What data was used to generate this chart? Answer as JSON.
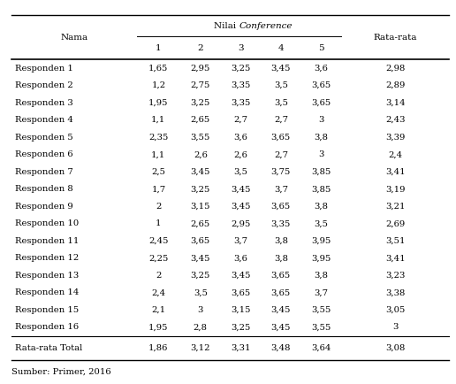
{
  "col_header_main": "Nama",
  "col_header_rata": "Rata-rata",
  "sub_headers": [
    "1",
    "2",
    "3",
    "4",
    "5"
  ],
  "rows": [
    [
      "Responden 1",
      "1,65",
      "2,95",
      "3,25",
      "3,45",
      "3,6",
      "2,98"
    ],
    [
      "Responden 2",
      "1,2",
      "2,75",
      "3,35",
      "3,5",
      "3,65",
      "2,89"
    ],
    [
      "Responden 3",
      "1,95",
      "3,25",
      "3,35",
      "3,5",
      "3,65",
      "3,14"
    ],
    [
      "Responden 4",
      "1,1",
      "2,65",
      "2,7",
      "2,7",
      "3",
      "2,43"
    ],
    [
      "Responden 5",
      "2,35",
      "3,55",
      "3,6",
      "3,65",
      "3,8",
      "3,39"
    ],
    [
      "Responden 6",
      "1,1",
      "2,6",
      "2,6",
      "2,7",
      "3",
      "2,4"
    ],
    [
      "Responden 7",
      "2,5",
      "3,45",
      "3,5",
      "3,75",
      "3,85",
      "3,41"
    ],
    [
      "Responden 8",
      "1,7",
      "3,25",
      "3,45",
      "3,7",
      "3,85",
      "3,19"
    ],
    [
      "Responden 9",
      "2",
      "3,15",
      "3,45",
      "3,65",
      "3,8",
      "3,21"
    ],
    [
      "Responden 10",
      "1",
      "2,65",
      "2,95",
      "3,35",
      "3,5",
      "2,69"
    ],
    [
      "Responden 11",
      "2,45",
      "3,65",
      "3,7",
      "3,8",
      "3,95",
      "3,51"
    ],
    [
      "Responden 12",
      "2,25",
      "3,45",
      "3,6",
      "3,8",
      "3,95",
      "3,41"
    ],
    [
      "Responden 13",
      "2",
      "3,25",
      "3,45",
      "3,65",
      "3,8",
      "3,23"
    ],
    [
      "Responden 14",
      "2,4",
      "3,5",
      "3,65",
      "3,65",
      "3,7",
      "3,38"
    ],
    [
      "Responden 15",
      "2,1",
      "3",
      "3,15",
      "3,45",
      "3,55",
      "3,05"
    ],
    [
      "Responden 16",
      "1,95",
      "2,8",
      "3,25",
      "3,45",
      "3,55",
      "3"
    ]
  ],
  "total_row": [
    "Rata-rata Total",
    "1,86",
    "3,12",
    "3,31",
    "3,48",
    "3,64",
    "3,08"
  ],
  "footer": "Sumber: Primer, 2016",
  "bg_color": "#ffffff",
  "text_color": "#000000",
  "font_size": 7.2,
  "header_font_size": 7.5
}
